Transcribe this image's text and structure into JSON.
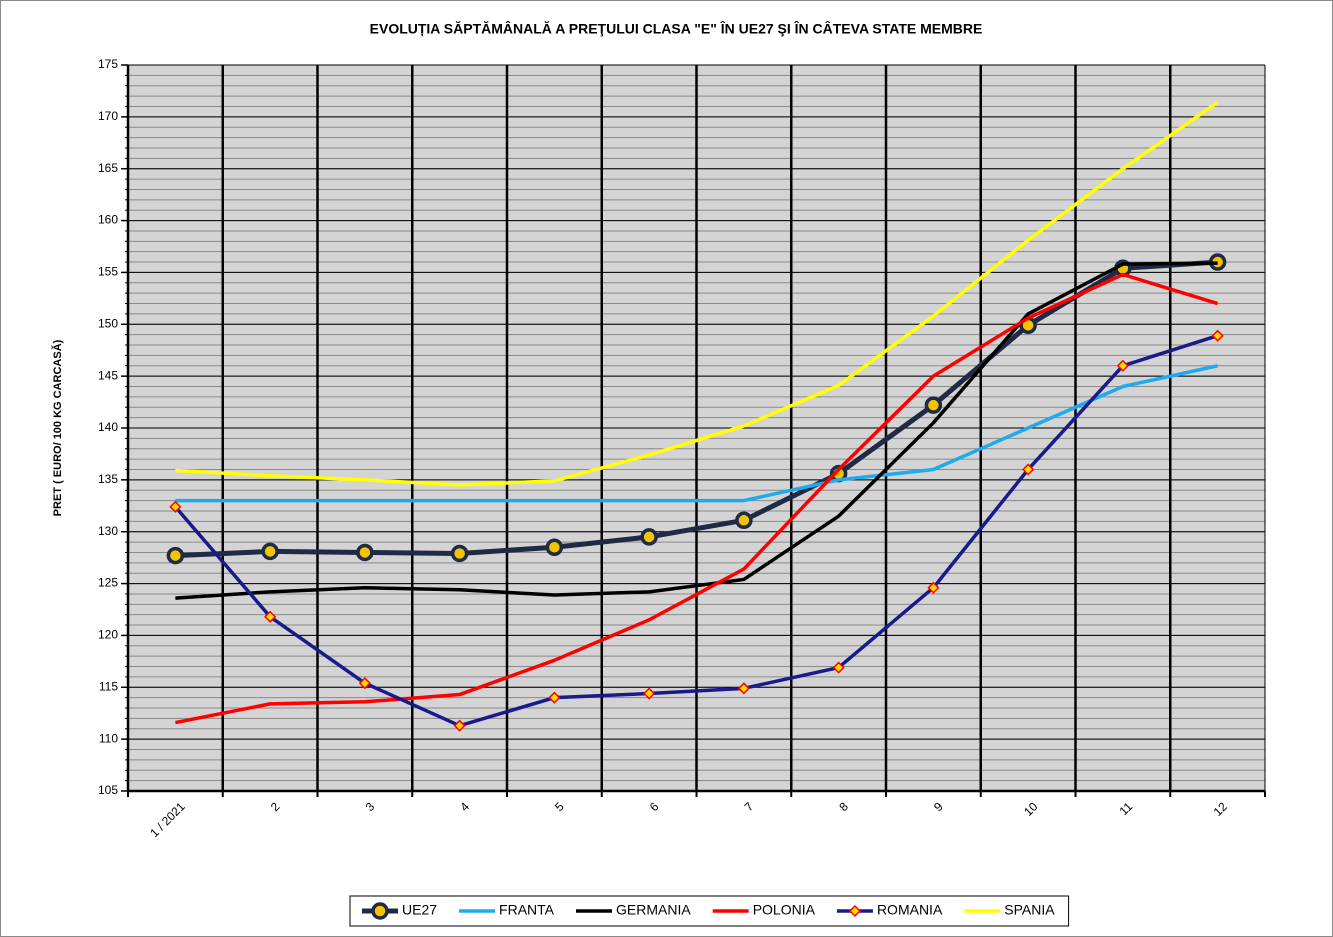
{
  "chart_data": {
    "type": "line",
    "title": "EVOLUȚIA SĂPTĂMÂNALĂ  A PREŢULUI CLASA \"E\"  ÎN  UE27 ŞI ÎN  CÂTEVA STATE MEMBRE",
    "y_label": "PRET ( EURO/ 100 KG CARCASĂ)",
    "categories": [
      "1 / 2021",
      "2",
      "3",
      "4",
      "5",
      "6",
      "7",
      "8",
      "9",
      "10",
      "11",
      "12"
    ],
    "ylim": [
      105,
      175
    ],
    "yticks": [
      105,
      110,
      115,
      120,
      125,
      130,
      135,
      140,
      145,
      150,
      155,
      160,
      165,
      170,
      175
    ],
    "grid": true,
    "legend": "bottom",
    "series": [
      {
        "name": "UE27",
        "color": "#1f2a44",
        "marker": "circle",
        "values": [
          127.7,
          128.1,
          128.0,
          127.9,
          128.5,
          129.5,
          131.1,
          135.6,
          142.2,
          149.9,
          155.4,
          156.0
        ]
      },
      {
        "name": "FRANTA",
        "color": "#1eaaf1",
        "values": [
          133,
          133,
          133,
          133,
          133,
          133,
          133,
          135.0,
          136.0,
          140.0,
          144.0,
          146.0
        ]
      },
      {
        "name": "GERMANIA",
        "color": "#000000",
        "values": [
          123.6,
          124.2,
          124.6,
          124.4,
          123.9,
          124.2,
          125.4,
          131.5,
          140.5,
          151.0,
          155.8,
          155.9
        ]
      },
      {
        "name": "POLONIA",
        "color": "#ff0000",
        "values": [
          111.6,
          113.4,
          113.6,
          114.3,
          117.6,
          121.5,
          126.4,
          136.0,
          145.0,
          150.6,
          154.8,
          152.0
        ]
      },
      {
        "name": "ROMANIA",
        "color": "#1a1a8c",
        "marker": "diamond",
        "values": [
          132.4,
          121.8,
          115.4,
          111.3,
          114.0,
          114.4,
          114.9,
          116.9,
          124.6,
          136.0,
          146.0,
          148.9
        ]
      },
      {
        "name": "SPANIA",
        "color": "#ffff00",
        "values": [
          135.9,
          135.4,
          135.0,
          134.5,
          134.9,
          137.4,
          140.2,
          144.1,
          150.8,
          158.1,
          165.0,
          171.4
        ]
      }
    ]
  }
}
